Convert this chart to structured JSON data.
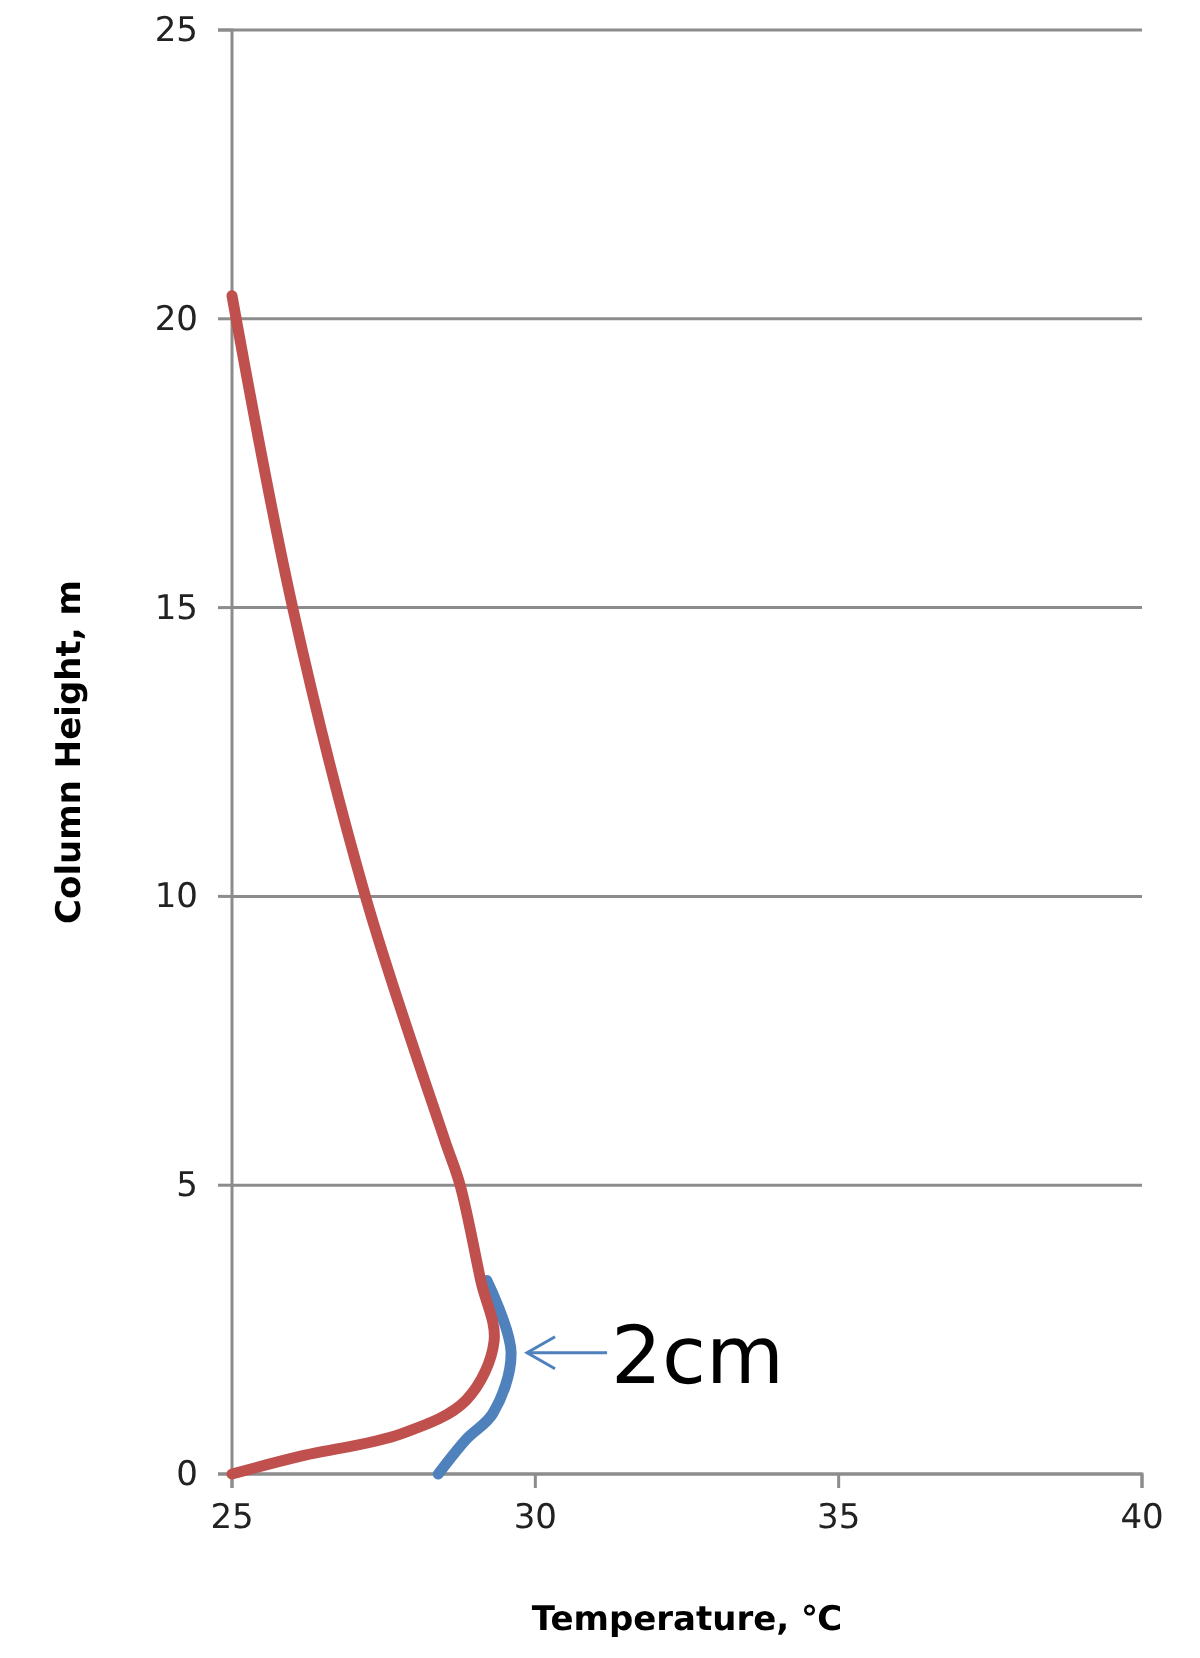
{
  "chart_data": {
    "type": "line",
    "xlabel": "Temperature, ℃",
    "ylabel": "Column Height, m",
    "xlim": [
      25,
      40
    ],
    "xticks": [
      25,
      30,
      35,
      40
    ],
    "ylim": [
      0,
      25
    ],
    "yticks": [
      0,
      5,
      10,
      15,
      20,
      25
    ],
    "grid": "y",
    "marker": "none",
    "line_style": "solid",
    "series": [
      {
        "color": "#4f81bd",
        "x": [
          28.4,
          28.86,
          29.3,
          29.6,
          29.2
        ],
        "values": [
          0,
          0.6,
          1.05,
          2.1,
          3.35
        ]
      },
      {
        "color": "#c0504d",
        "x": [
          25,
          26.1,
          27.8,
          28.86,
          29.32,
          29.1,
          28.76,
          28.5,
          27.2,
          26.0,
          25.0
        ],
        "values": [
          0,
          0.3,
          0.7,
          1.28,
          2.3,
          3.35,
          5,
          5.8,
          10,
          15,
          20.4
        ]
      }
    ],
    "annotations": [
      {
        "text": "2cm",
        "x": 29.6,
        "y": 2.1
      }
    ]
  }
}
